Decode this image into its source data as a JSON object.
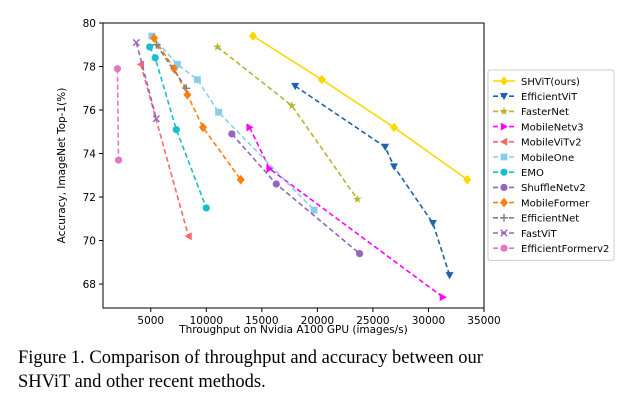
{
  "chart_data": {
    "type": "line",
    "title": "",
    "xlabel": "Throughput on Nvidia A100 GPU (images/s)",
    "ylabel": "Accuracy, ImageNet Top-1(%)",
    "xlim": [
      700,
      35000
    ],
    "ylim": [
      66.9,
      80
    ],
    "xticks": [
      5000,
      10000,
      15000,
      20000,
      25000,
      30000,
      35000
    ],
    "yticks": [
      68,
      70,
      72,
      74,
      76,
      78,
      80
    ],
    "grid": false,
    "legend_position": "right",
    "series": [
      {
        "name": "SHViT(ours)",
        "color": "#ffd700",
        "marker": "diamond",
        "dash": "solid",
        "x": [
          14200,
          20400,
          26900,
          33500
        ],
        "y": [
          79.4,
          77.4,
          75.2,
          72.8
        ]
      },
      {
        "name": "EfficientViT",
        "color": "#1f64a8",
        "marker": "triangle-down",
        "dash": "dashed",
        "x": [
          18000,
          26100,
          26900,
          30400,
          31900
        ],
        "y": [
          77.1,
          74.3,
          73.4,
          70.8,
          68.4
        ]
      },
      {
        "name": "FasterNet",
        "color": "#b5b52e",
        "marker": "star",
        "dash": "dashed",
        "x": [
          11000,
          17700,
          23600
        ],
        "y": [
          78.9,
          76.2,
          71.9
        ]
      },
      {
        "name": "MobileNetv3",
        "color": "#ff00ff",
        "marker": "triangle-right",
        "dash": "dashed",
        "x": [
          13900,
          15700,
          31300
        ],
        "y": [
          75.2,
          73.3,
          67.4
        ]
      },
      {
        "name": "MobileViTv2",
        "color": "#ff6666",
        "marker": "triangle-left",
        "dash": "dashed",
        "x": [
          4100,
          8400
        ],
        "y": [
          78.1,
          70.2
        ]
      },
      {
        "name": "MobileOne",
        "color": "#87ceeb",
        "marker": "square",
        "dash": "dashed",
        "x": [
          5100,
          7400,
          9200,
          11100,
          19700
        ],
        "y": [
          79.4,
          78.1,
          77.4,
          75.9,
          71.4
        ]
      },
      {
        "name": "EMO",
        "color": "#17becf",
        "marker": "circle",
        "dash": "dashed",
        "x": [
          4900,
          5400,
          7300,
          10000
        ],
        "y": [
          78.9,
          78.4,
          75.1,
          71.5
        ]
      },
      {
        "name": "ShuffleNetv2",
        "color": "#9467bd",
        "marker": "circle",
        "dash": "dashed",
        "x": [
          12300,
          16300,
          23800
        ],
        "y": [
          74.9,
          72.6,
          69.4
        ]
      },
      {
        "name": "MobileFormer",
        "color": "#ff7f0e",
        "marker": "diamond",
        "dash": "dashed",
        "x": [
          5300,
          7100,
          8300,
          9700,
          13100
        ],
        "y": [
          79.3,
          77.9,
          76.7,
          75.2,
          72.8
        ]
      },
      {
        "name": "EfficientNet",
        "color": "#7f7f7f",
        "marker": "plus",
        "dash": "dashed",
        "x": [
          5500,
          8200
        ],
        "y": [
          79.0,
          77.0
        ]
      },
      {
        "name": "FastViT",
        "color": "#9467bd",
        "marker": "x",
        "dash": "dashed",
        "x": [
          3700,
          5500
        ],
        "y": [
          79.1,
          75.6
        ]
      },
      {
        "name": "EfficientFormerv2",
        "color": "#e377c2",
        "marker": "circle",
        "dash": "dashed",
        "x": [
          2000,
          2100
        ],
        "y": [
          77.9,
          73.7
        ]
      }
    ]
  },
  "caption": {
    "line1": "Figure 1. Comparison of throughput and accuracy between our",
    "line2": "SHViT and other recent methods."
  }
}
